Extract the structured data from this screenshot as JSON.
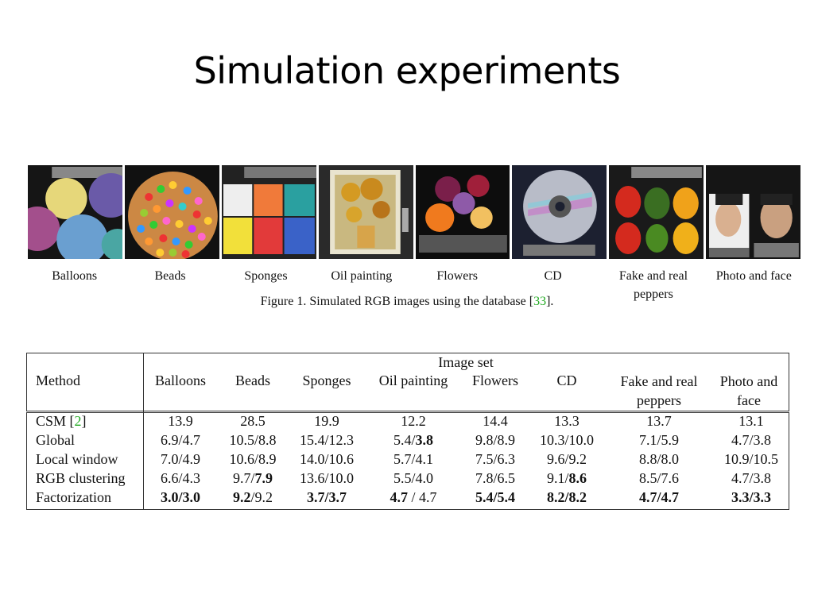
{
  "slide": {
    "title": "Simulation experiments"
  },
  "figure": {
    "images": [
      {
        "name": "Balloons",
        "label": "Balloons"
      },
      {
        "name": "Beads",
        "label": "Beads"
      },
      {
        "name": "Sponges",
        "label": "Sponges"
      },
      {
        "name": "Oil painting",
        "label": "Oil painting"
      },
      {
        "name": "Flowers",
        "label": "Flowers"
      },
      {
        "name": "CD",
        "label": "CD"
      },
      {
        "name": "Fake and real peppers",
        "label": "Fake and real peppers"
      },
      {
        "name": "Photo and face",
        "label": "Photo and face"
      }
    ],
    "caption_prefix": "Figure 1. Simulated RGB images using the database [",
    "caption_ref": "33",
    "caption_suffix": "]."
  },
  "table": {
    "group_header": "Image set",
    "method_header": "Method",
    "columns": [
      "Balloons",
      "Beads",
      "Sponges",
      "Oil painting",
      "Flowers",
      "CD",
      "Fake and real peppers",
      "Photo and face"
    ],
    "rows": [
      {
        "method": "CSM",
        "method_ref": "2",
        "cells": [
          "13.9",
          "28.5",
          "19.9",
          "12.2",
          "14.4",
          "13.3",
          "13.7",
          "13.1"
        ]
      },
      {
        "method": "Global",
        "cells": [
          "6.9/4.7",
          "10.5/8.8",
          "15.4/12.3",
          "5.4/3.8",
          "9.8/8.9",
          "10.3/10.0",
          "7.1/5.9",
          "4.7/3.8"
        ]
      },
      {
        "method": "Local window",
        "cells": [
          "7.0/4.9",
          "10.6/8.9",
          "14.0/10.6",
          "5.7/4.1",
          "7.5/6.3",
          "9.6/9.2",
          "8.8/8.0",
          "10.9/10.5"
        ]
      },
      {
        "method": "RGB clustering",
        "cells": [
          "6.6/4.3",
          "9.7/7.9",
          "13.6/10.0",
          "5.5/4.0",
          "7.8/6.5",
          "9.1/8.6",
          "8.5/7.6",
          "4.7/3.8"
        ]
      },
      {
        "method": "Factorization",
        "cells": [
          "3.0/3.0",
          "9.2/9.2",
          "3.7/3.7",
          "4.7 / 4.7",
          "5.4/5.4",
          "8.2/8.2",
          "4.7/4.7",
          "3.3/3.3"
        ]
      }
    ]
  }
}
